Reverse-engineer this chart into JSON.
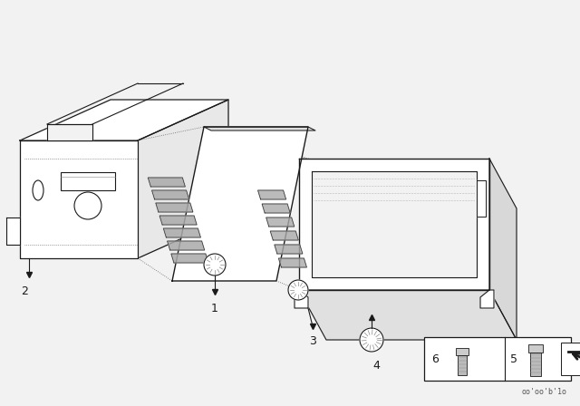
{
  "background_color": "#f2f2f2",
  "line_color": "#1a1a1a",
  "doc_number": "oo'oo'b'1o",
  "fig_width": 6.4,
  "fig_height": 4.48,
  "dpi": 100
}
